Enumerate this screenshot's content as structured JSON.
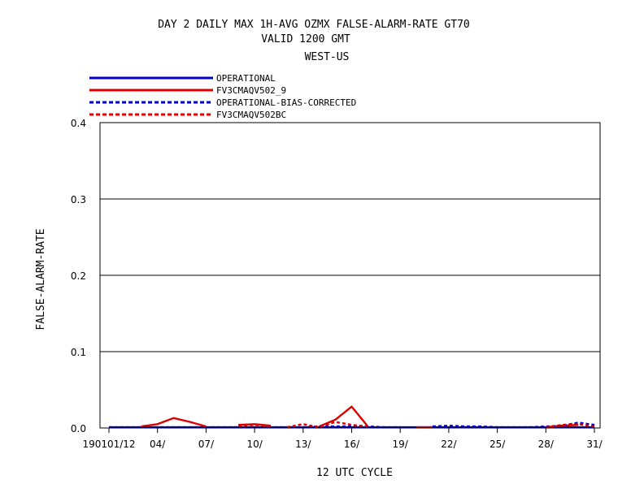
{
  "chart_data": {
    "type": "line",
    "title": [
      "DAY 2 DAILY MAX   1H-AVG OZMX FALSE-ALARM-RATE GT70",
      "VALID 1200 GMT",
      "WEST-US"
    ],
    "xlabel": "12 UTC CYCLE",
    "ylabel": "FALSE-ALARM-RATE",
    "ylim": [
      0,
      0.4
    ],
    "yticks": [
      "0.0",
      "0.1",
      "0.2",
      "0.3",
      "0.4"
    ],
    "xlim": [
      1,
      32
    ],
    "xticks": [
      {
        "x": 1,
        "label": "190101/12"
      },
      {
        "x": 4,
        "label": "04/"
      },
      {
        "x": 7,
        "label": "07/"
      },
      {
        "x": 10,
        "label": "10/"
      },
      {
        "x": 13,
        "label": "13/"
      },
      {
        "x": 16,
        "label": "16/"
      },
      {
        "x": 19,
        "label": "19/"
      },
      {
        "x": 22,
        "label": "22/"
      },
      {
        "x": 25,
        "label": "25/"
      },
      {
        "x": 28,
        "label": "28/"
      },
      {
        "x": 31,
        "label": "31/"
      }
    ],
    "grid": "horizontal",
    "legend_position": "top-left",
    "series": [
      {
        "name": "OPERATIONAL",
        "color": "#0000cc",
        "dash": "solid",
        "segments": [
          [
            [
              1,
              0.001
            ],
            [
              2,
              0.001
            ],
            [
              3,
              0.001
            ],
            [
              4,
              0.001
            ],
            [
              5,
              0.001
            ],
            [
              6,
              0.001
            ],
            [
              7,
              0.001
            ],
            [
              8,
              0.001
            ],
            [
              9,
              0.001
            ],
            [
              10,
              0.001
            ],
            [
              11,
              0.001
            ],
            [
              12,
              0.001
            ],
            [
              13,
              0.001
            ],
            [
              14,
              0.001
            ],
            [
              15,
              0.001
            ],
            [
              16,
              0.001
            ],
            [
              17,
              0.001
            ],
            [
              18,
              0.001
            ],
            [
              19,
              0.001
            ],
            [
              20,
              0.001
            ],
            [
              21,
              0.001
            ],
            [
              22,
              0.001
            ],
            [
              23,
              0.001
            ],
            [
              24,
              0.001
            ],
            [
              25,
              0.001
            ],
            [
              26,
              0.001
            ],
            [
              27,
              0.001
            ],
            [
              28,
              0.001
            ],
            [
              29,
              0.001
            ],
            [
              30,
              0.001
            ],
            [
              31,
              0.001
            ]
          ]
        ]
      },
      {
        "name": "FV3CMAQV502_9",
        "color": "#dd0000",
        "dash": "solid",
        "segments": [
          [
            [
              3,
              0.002
            ],
            [
              4,
              0.005
            ],
            [
              5,
              0.013
            ],
            [
              6,
              0.008
            ],
            [
              7,
              0.002
            ]
          ],
          [
            [
              9,
              0.004
            ],
            [
              10,
              0.005
            ],
            [
              11,
              0.003
            ]
          ],
          [
            [
              14,
              0.002
            ],
            [
              15,
              0.011
            ],
            [
              16,
              0.028
            ],
            [
              17,
              0.002
            ]
          ],
          [
            [
              20,
              0.001
            ],
            [
              21,
              0.001
            ]
          ],
          [
            [
              28,
              0.001
            ],
            [
              29,
              0.003
            ],
            [
              30,
              0.004
            ]
          ]
        ]
      },
      {
        "name": "OPERATIONAL-BIAS-CORRECTED",
        "color": "#0000cc",
        "dash": "dashed",
        "segments": [
          [
            [
              1,
              0.001
            ],
            [
              2,
              0.001
            ],
            [
              3,
              0.001
            ],
            [
              4,
              0.001
            ],
            [
              5,
              0.001
            ],
            [
              6,
              0.001
            ],
            [
              7,
              0.001
            ],
            [
              8,
              0.001
            ],
            [
              9,
              0.001
            ],
            [
              10,
              0.001
            ],
            [
              11,
              0.001
            ],
            [
              12,
              0.001
            ],
            [
              13,
              0.001
            ],
            [
              14,
              0.002
            ],
            [
              15,
              0.002
            ],
            [
              16,
              0.002
            ],
            [
              17,
              0.002
            ],
            [
              18,
              0.001
            ],
            [
              19,
              0.001
            ]
          ],
          [
            [
              21,
              0.002
            ],
            [
              22,
              0.003
            ],
            [
              23,
              0.002
            ],
            [
              24,
              0.002
            ],
            [
              25,
              0.001
            ],
            [
              26,
              0.001
            ],
            [
              27,
              0.001
            ],
            [
              28,
              0.002
            ],
            [
              29,
              0.003
            ],
            [
              30,
              0.007
            ],
            [
              31,
              0.004
            ]
          ]
        ]
      },
      {
        "name": "FV3CMAQV502BC",
        "color": "#dd0000",
        "dash": "dashed",
        "segments": [
          [
            [
              9,
              0.003
            ],
            [
              10,
              0.004
            ],
            [
              11,
              0.002
            ]
          ],
          [
            [
              12,
              0.001
            ],
            [
              13,
              0.005
            ],
            [
              14,
              0.001
            ],
            [
              15,
              0.008
            ],
            [
              16,
              0.004
            ],
            [
              17,
              0.002
            ]
          ],
          [
            [
              28,
              0.001
            ],
            [
              29,
              0.004
            ],
            [
              30,
              0.005
            ],
            [
              31,
              0.002
            ]
          ]
        ]
      }
    ]
  }
}
